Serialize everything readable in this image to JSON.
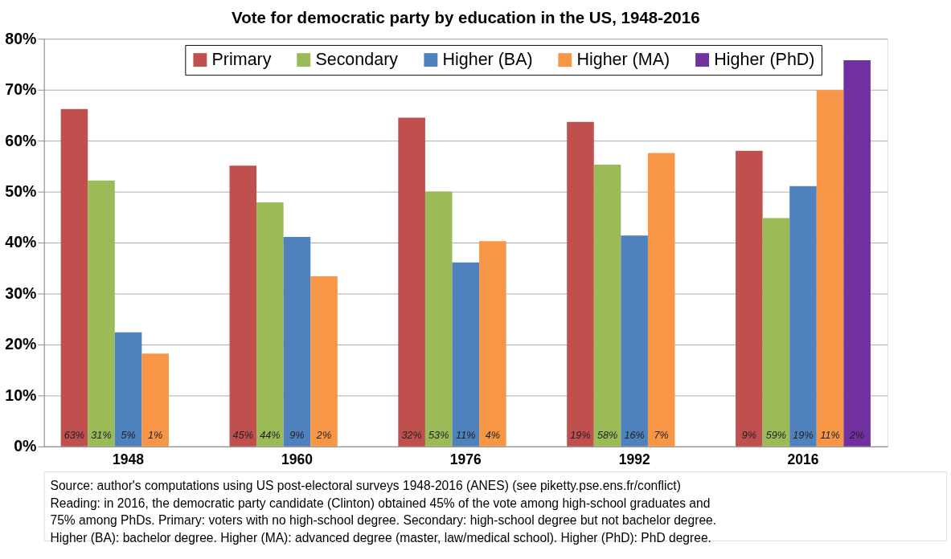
{
  "chart_data": {
    "type": "bar",
    "title": "Vote for democratic party by education in the US, 1948-2016",
    "categories": [
      "1948",
      "1960",
      "1976",
      "1992",
      "2016"
    ],
    "series": [
      {
        "name": "Primary",
        "color": "#c0504d",
        "values": [
          66.2,
          55.1,
          64.5,
          63.7,
          58.0
        ]
      },
      {
        "name": "Secondary",
        "color": "#9bbb59",
        "values": [
          52.2,
          47.9,
          50.0,
          55.3,
          44.8
        ]
      },
      {
        "name": "Higher (BA)",
        "color": "#4f81bd",
        "values": [
          22.4,
          41.1,
          36.1,
          41.4,
          51.1
        ]
      },
      {
        "name": "Higher (MA)",
        "color": "#f79646",
        "values": [
          18.2,
          33.4,
          40.3,
          57.6,
          69.9
        ]
      },
      {
        "name": "Higher (PhD)",
        "color": "#7030a0",
        "values": [
          null,
          null,
          null,
          null,
          75.8
        ]
      }
    ],
    "ylim": [
      0,
      80
    ],
    "yticks": [
      {
        "value": 0,
        "label": "0%"
      },
      {
        "value": 10,
        "label": "10%"
      },
      {
        "value": 20,
        "label": "20%"
      },
      {
        "value": 30,
        "label": "30%"
      },
      {
        "value": 40,
        "label": "40%"
      },
      {
        "value": 50,
        "label": "50%"
      },
      {
        "value": 60,
        "label": "60%"
      },
      {
        "value": 70,
        "label": "70%"
      },
      {
        "value": 80,
        "label": "80%"
      }
    ],
    "grid": "y",
    "legend": "top",
    "annotations": [
      "63%",
      "31%",
      "5%",
      "1%",
      "45%",
      "44%",
      "9%",
      "2%",
      "32%",
      "53%",
      "11%",
      "4%",
      "19%",
      "58%",
      "16%",
      "7%",
      "9%",
      "59%",
      "19%",
      "11%",
      "2%",
      "Source: author's computations using US post-electoral surveys 1948-2016 (ANES) (see piketty.pse.ens.fr/conflict)",
      "Reading: in 2016, the democratic party candidate (Clinton) obtained 45% of the vote among high-school graduates and 75% among PhDs. Primary: voters with no high-school degree. Secondary: high-school degree but not bachelor degree. Higher (BA): bachelor degree. Higher (MA): advanced degree (master, law/medical school). Higher (PhD): PhD degree."
    ]
  }
}
